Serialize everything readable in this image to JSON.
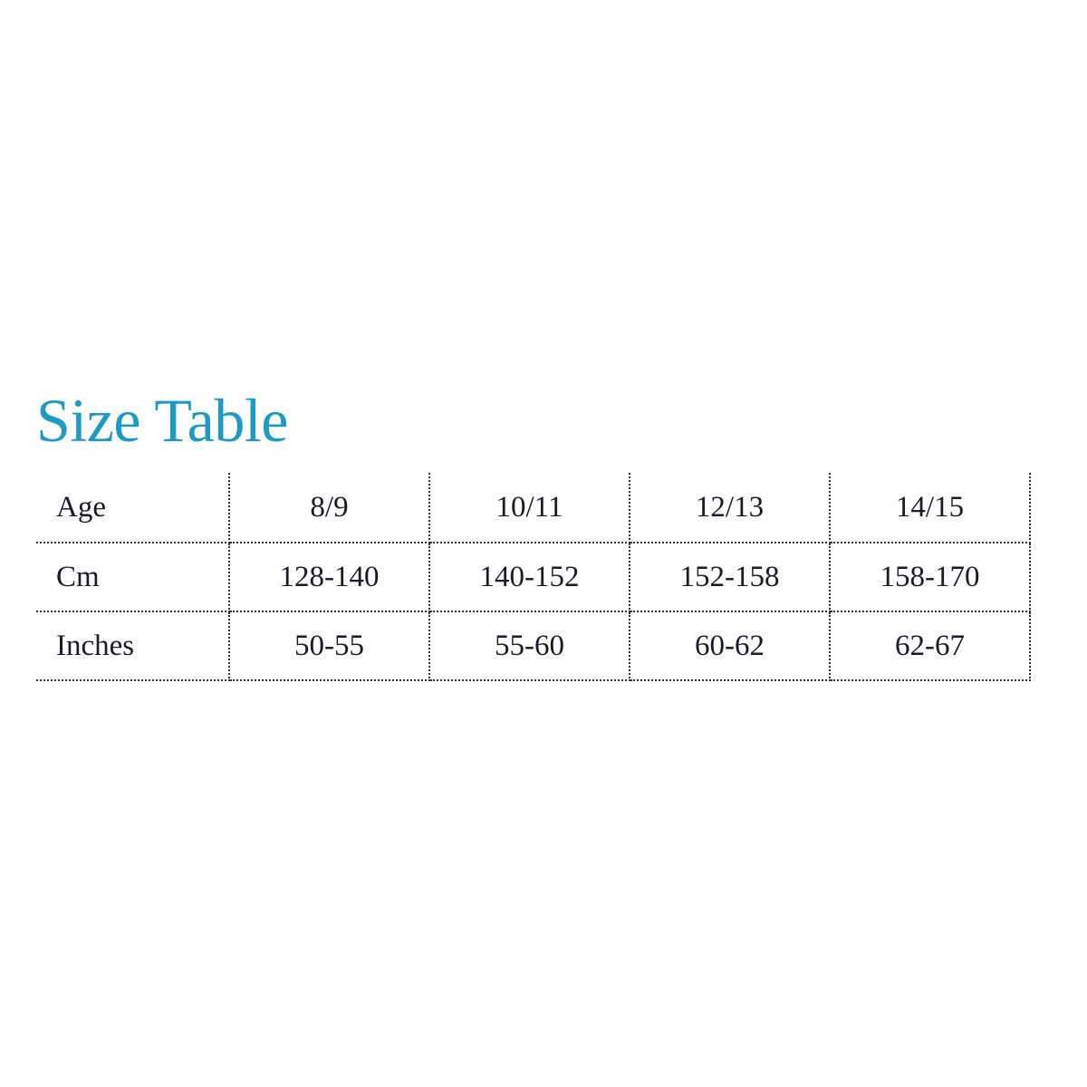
{
  "title": "Size Table",
  "accent_color": "#1e9ac3",
  "table": {
    "rows": [
      {
        "label": "Age",
        "values": [
          "8/9",
          "10/11",
          "12/13",
          "14/15"
        ]
      },
      {
        "label": "Cm",
        "values": [
          "128-140",
          "140-152",
          "152-158",
          "158-170"
        ]
      },
      {
        "label": "Inches",
        "values": [
          "50-55",
          "55-60",
          "60-62",
          "62-67"
        ]
      }
    ]
  }
}
